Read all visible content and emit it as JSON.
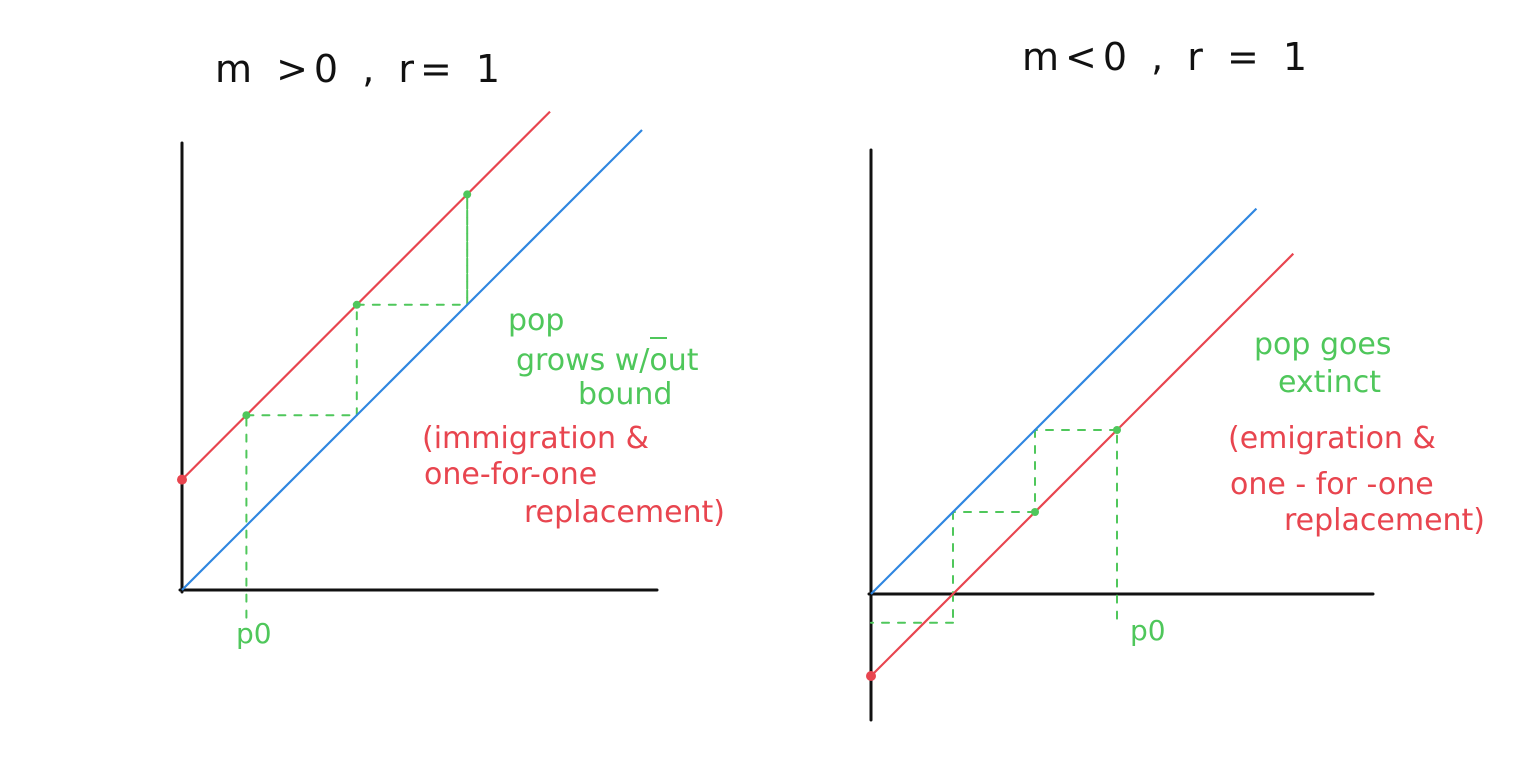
{
  "colors": {
    "axis": "#111111",
    "identity_line": "#2f86e0",
    "map_line": "#e8454f",
    "cobweb": "#4fc75b"
  },
  "left_panel": {
    "title": "m >0 , r= 1",
    "p0_label": "p0",
    "outcome_lines": [
      "pop",
      "grows w/out",
      "bound"
    ],
    "explanation_lines": [
      "(immigration &",
      "one-for-one",
      "replacement)"
    ]
  },
  "right_panel": {
    "title": "m<0 , r = 1",
    "p0_label": "p0",
    "outcome_lines": [
      "pop goes",
      "extinct"
    ],
    "explanation_lines": [
      "(emigration &",
      "one - for -one",
      "replacement)"
    ]
  },
  "chart_data": [
    {
      "type": "line",
      "title": "m >0 , r= 1",
      "series": [
        {
          "role": "identity line p(t+1)=p(t)",
          "color": "#2f86e0",
          "x": [
            0,
            10
          ],
          "y": [
            0,
            10
          ]
        },
        {
          "role": "map p(t+1)=r*p(t)+m",
          "color": "#e8454f",
          "x": [
            0,
            8
          ],
          "y": [
            2.4,
            10.4
          ]
        }
      ],
      "cobweb_points": [
        [
          1.4,
          3.8
        ],
        [
          3.8,
          6.2
        ],
        [
          6.2,
          8.6
        ]
      ],
      "intercept_point": [
        0,
        2.4
      ],
      "p0": 1.4
    },
    {
      "type": "line",
      "title": "m<0 , r = 1",
      "series": [
        {
          "role": "identity line p(t+1)=p(t)",
          "color": "#2f86e0",
          "x": [
            0,
            9.4
          ],
          "y": [
            0,
            9.4
          ]
        },
        {
          "role": "map p(t+1)=r*p(t)+m",
          "color": "#e8454f",
          "x": [
            0,
            10.3
          ],
          "y": [
            -2,
            8.3
          ]
        }
      ],
      "cobweb_points": [
        [
          6,
          4
        ],
        [
          4,
          2
        ],
        [
          2,
          0
        ]
      ],
      "intercept_point": [
        0,
        -2
      ],
      "p0": 6
    }
  ]
}
